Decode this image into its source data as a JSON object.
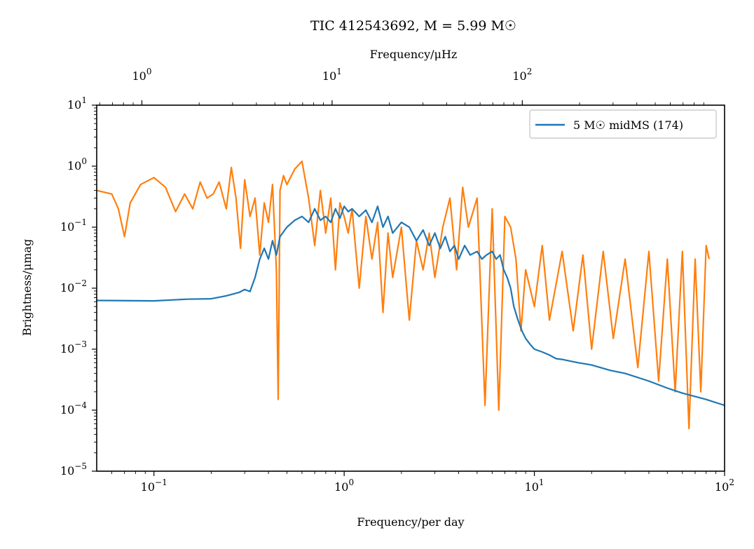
{
  "chart_data": {
    "type": "line",
    "title": "TIC 412543692, M = 5.99 M☉",
    "xlabel": "Frequency/per day",
    "xlabel_top": "Frequency/μHz",
    "ylabel": "Brightness/μmag",
    "xscale": "log",
    "yscale": "log",
    "xlim": [
      0.05,
      100
    ],
    "ylim": [
      1e-05,
      10
    ],
    "top_xlim": [
      0.5787,
      1157.4
    ],
    "x_ticks": [
      {
        "value": 0.1,
        "base": "10",
        "exp": "−1"
      },
      {
        "value": 1,
        "base": "10",
        "exp": "0"
      },
      {
        "value": 10,
        "base": "10",
        "exp": "1"
      },
      {
        "value": 100,
        "base": "10",
        "exp": "2"
      }
    ],
    "top_ticks": [
      {
        "value": 1,
        "base": "10",
        "exp": "0"
      },
      {
        "value": 10,
        "base": "10",
        "exp": "1"
      },
      {
        "value": 100,
        "base": "10",
        "exp": "2"
      }
    ],
    "y_ticks": [
      {
        "value": 10,
        "base": "10",
        "exp": "1"
      },
      {
        "value": 1,
        "base": "10",
        "exp": "0"
      },
      {
        "value": 0.1,
        "base": "10",
        "exp": "−1"
      },
      {
        "value": 0.01,
        "base": "10",
        "exp": "−2"
      },
      {
        "value": 0.001,
        "base": "10",
        "exp": "−3"
      },
      {
        "value": 0.0001,
        "base": "10",
        "exp": "−4"
      },
      {
        "value": 1e-05,
        "base": "10",
        "exp": "−5"
      }
    ],
    "legend": {
      "position": "top-right",
      "entry": "5 M☉ midMS (174)"
    },
    "grid": false,
    "series": [
      {
        "name": "5 M☉ midMS (174)",
        "color": "#1f77b4",
        "x": [
          0.05,
          0.1,
          0.15,
          0.2,
          0.24,
          0.28,
          0.3,
          0.32,
          0.34,
          0.36,
          0.38,
          0.4,
          0.42,
          0.44,
          0.46,
          0.5,
          0.55,
          0.6,
          0.65,
          0.7,
          0.75,
          0.8,
          0.85,
          0.9,
          0.95,
          1.0,
          1.05,
          1.1,
          1.2,
          1.3,
          1.4,
          1.5,
          1.6,
          1.7,
          1.8,
          2.0,
          2.2,
          2.4,
          2.6,
          2.8,
          3.0,
          3.2,
          3.4,
          3.6,
          3.8,
          4.0,
          4.3,
          4.6,
          5.0,
          5.3,
          5.6,
          6.0,
          6.3,
          6.6,
          6.9,
          7.2,
          7.5,
          7.8,
          8.2,
          8.6,
          9.0,
          9.5,
          10,
          11,
          12,
          13,
          14,
          15,
          17,
          20,
          25,
          30,
          40,
          50,
          60,
          80,
          100
        ],
        "y": [
          0.0063,
          0.0062,
          0.0066,
          0.0067,
          0.0075,
          0.0085,
          0.0095,
          0.0088,
          0.015,
          0.03,
          0.045,
          0.03,
          0.06,
          0.035,
          0.07,
          0.1,
          0.13,
          0.15,
          0.12,
          0.2,
          0.13,
          0.15,
          0.12,
          0.2,
          0.14,
          0.22,
          0.18,
          0.2,
          0.15,
          0.19,
          0.12,
          0.22,
          0.1,
          0.15,
          0.08,
          0.12,
          0.1,
          0.06,
          0.09,
          0.05,
          0.08,
          0.045,
          0.07,
          0.04,
          0.05,
          0.03,
          0.05,
          0.035,
          0.04,
          0.03,
          0.035,
          0.04,
          0.03,
          0.035,
          0.02,
          0.015,
          0.01,
          0.005,
          0.003,
          0.002,
          0.0015,
          0.0012,
          0.001,
          0.0009,
          0.0008,
          0.0007,
          0.00068,
          0.00065,
          0.0006,
          0.00055,
          0.00045,
          0.0004,
          0.0003,
          0.00023,
          0.00019,
          0.00015,
          0.00012
        ]
      },
      {
        "name": "",
        "color": "#ff7f0e",
        "x": [
          0.05,
          0.06,
          0.065,
          0.07,
          0.075,
          0.085,
          0.1,
          0.115,
          0.13,
          0.145,
          0.16,
          0.175,
          0.19,
          0.205,
          0.22,
          0.24,
          0.255,
          0.27,
          0.285,
          0.3,
          0.32,
          0.34,
          0.36,
          0.38,
          0.4,
          0.42,
          0.44,
          0.45,
          0.46,
          0.48,
          0.5,
          0.55,
          0.6,
          0.65,
          0.7,
          0.75,
          0.8,
          0.85,
          0.9,
          0.95,
          1.0,
          1.05,
          1.1,
          1.2,
          1.3,
          1.4,
          1.5,
          1.6,
          1.7,
          1.8,
          2.0,
          2.2,
          2.4,
          2.6,
          2.8,
          3.0,
          3.3,
          3.6,
          3.9,
          4.2,
          4.5,
          5.0,
          5.5,
          6.0,
          6.5,
          7.0,
          7.5,
          8.0,
          8.5,
          9.0,
          10,
          11,
          12,
          14,
          16,
          18,
          20,
          23,
          26,
          30,
          35,
          40,
          45,
          50,
          55,
          60,
          65,
          70,
          75,
          80,
          83
        ],
        "y": [
          0.4,
          0.35,
          0.2,
          0.07,
          0.25,
          0.5,
          0.65,
          0.45,
          0.18,
          0.35,
          0.2,
          0.55,
          0.3,
          0.35,
          0.55,
          0.2,
          0.95,
          0.3,
          0.045,
          0.6,
          0.15,
          0.3,
          0.035,
          0.25,
          0.12,
          0.5,
          0.02,
          0.00015,
          0.4,
          0.7,
          0.5,
          0.9,
          1.2,
          0.3,
          0.05,
          0.4,
          0.08,
          0.3,
          0.02,
          0.25,
          0.15,
          0.08,
          0.2,
          0.01,
          0.15,
          0.03,
          0.12,
          0.004,
          0.08,
          0.015,
          0.1,
          0.003,
          0.06,
          0.02,
          0.08,
          0.015,
          0.1,
          0.3,
          0.02,
          0.45,
          0.1,
          0.3,
          0.00012,
          0.2,
          0.0001,
          0.15,
          0.1,
          0.03,
          0.002,
          0.02,
          0.005,
          0.05,
          0.003,
          0.04,
          0.002,
          0.035,
          0.001,
          0.04,
          0.0015,
          0.03,
          0.0005,
          0.04,
          0.0003,
          0.03,
          0.0002,
          0.04,
          5e-05,
          0.03,
          0.0002,
          0.05,
          0.03
        ]
      }
    ]
  }
}
